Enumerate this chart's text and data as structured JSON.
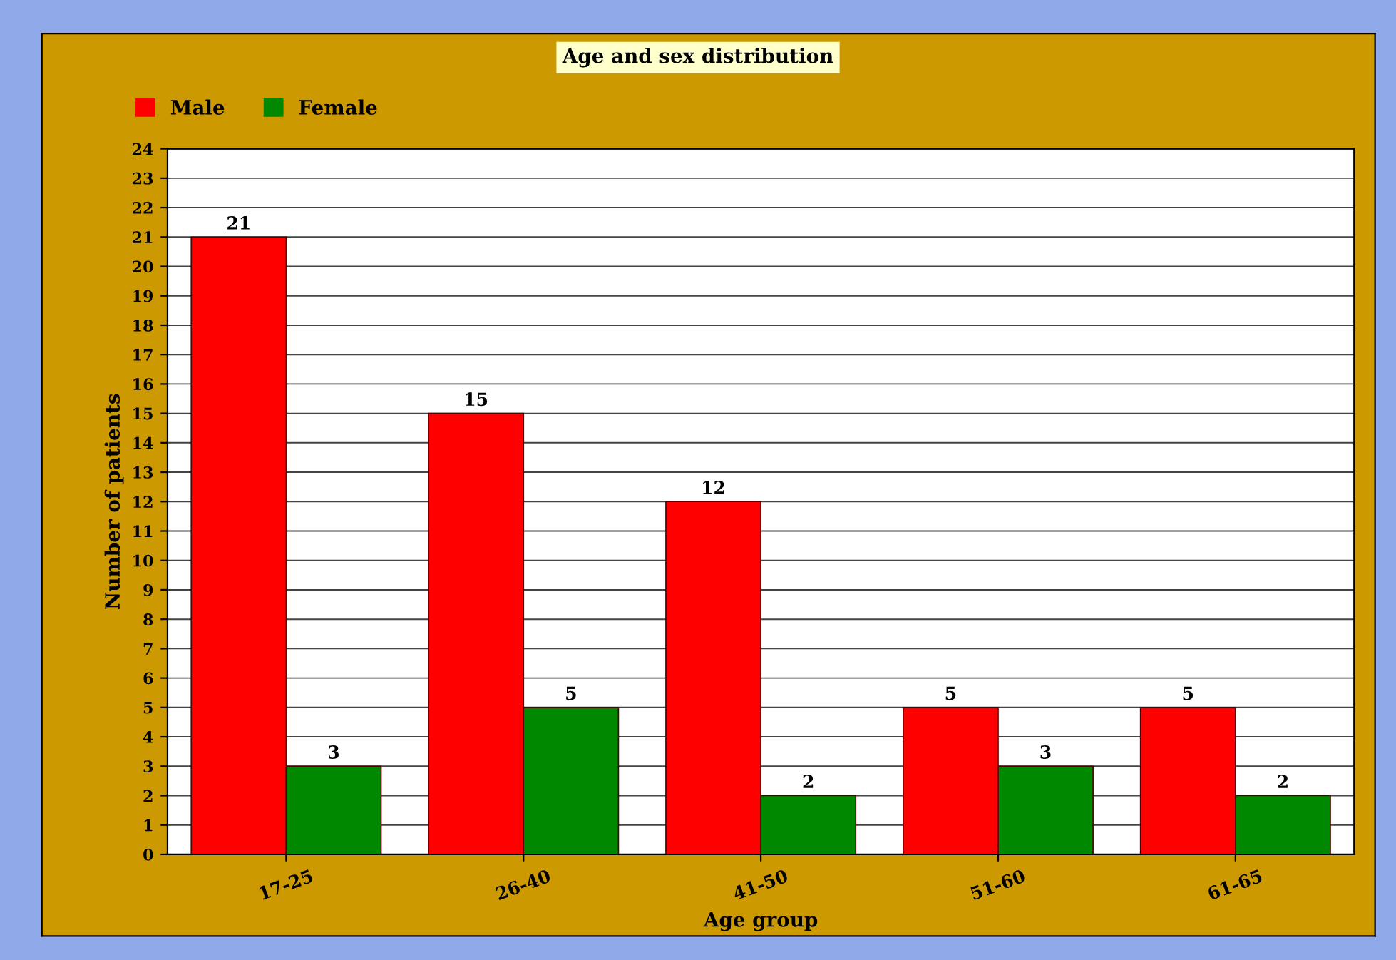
{
  "chart_data": {
    "type": "bar",
    "title": "Age and sex distribution",
    "xlabel": "Age group",
    "ylabel": "Number of patients",
    "categories": [
      "17-25",
      "26-40",
      "41-50",
      "51-60",
      "61-65"
    ],
    "series": [
      {
        "name": "Male",
        "color": "#ff0000",
        "values": [
          21,
          15,
          12,
          5,
          5
        ]
      },
      {
        "name": "Female",
        "color": "#008800",
        "values": [
          3,
          5,
          2,
          3,
          2
        ]
      }
    ],
    "ylim": [
      0,
      24
    ],
    "yticks": [
      0,
      1,
      2,
      3,
      4,
      5,
      6,
      7,
      8,
      9,
      10,
      11,
      12,
      13,
      14,
      15,
      16,
      17,
      18,
      19,
      20,
      21,
      22,
      23,
      24
    ],
    "grid": "y",
    "legend": "top left",
    "data_labels": true
  }
}
